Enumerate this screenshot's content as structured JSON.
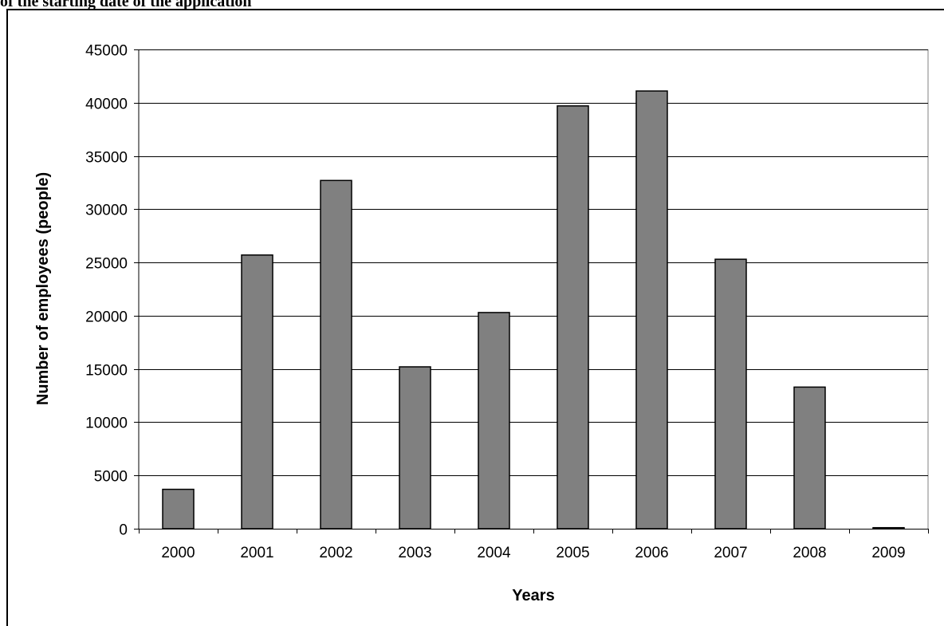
{
  "header": {
    "text": "of the starting date of the application"
  },
  "chart_data": {
    "type": "bar",
    "categories": [
      "2000",
      "2001",
      "2002",
      "2003",
      "2004",
      "2005",
      "2006",
      "2007",
      "2008",
      "2009"
    ],
    "values": [
      3700,
      25700,
      32700,
      15200,
      20300,
      39700,
      41100,
      25300,
      13300,
      100
    ],
    "xlabel": "Years",
    "ylabel": "Number of employees (people)",
    "ylim": [
      0,
      45000
    ],
    "yticks": [
      0,
      5000,
      10000,
      15000,
      20000,
      25000,
      30000,
      35000,
      40000,
      45000
    ],
    "grid": true,
    "legend": "none",
    "bar_color": "#808080",
    "bar_stroke": "#000000",
    "gridline_color": "#000000"
  }
}
